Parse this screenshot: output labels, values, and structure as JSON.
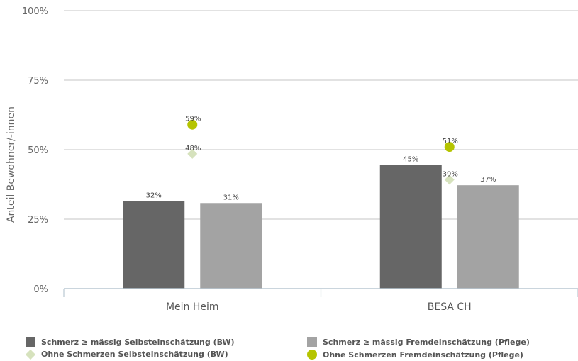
{
  "chart_data": {
    "type": "bar",
    "ylabel": "Anteil Bewohner/-innen",
    "ylim": [
      0,
      100
    ],
    "yticks": [
      0,
      25,
      50,
      75,
      100
    ],
    "ytick_labels": [
      "0%",
      "25%",
      "50%",
      "75%",
      "100%"
    ],
    "categories": [
      "Mein Heim",
      "BESA CH"
    ],
    "bar_series": [
      {
        "name": "Schmerz ≥ mässig Selbsteinschätzung (BW)",
        "color": "#666666",
        "values": [
          31.5,
          44.5
        ],
        "labels": [
          "32%",
          "45%"
        ]
      },
      {
        "name": "Schmerz ≥ mässig Fremdeinschätzung (Pflege)",
        "color": "#a3a3a3",
        "values": [
          30.8,
          37.2
        ],
        "labels": [
          "31%",
          "37%"
        ]
      }
    ],
    "marker_series": [
      {
        "name": "Ohne Schmerzen Selbsteinschätzung (BW)",
        "marker": "diamond",
        "color": "#d6e2bd",
        "values": [
          48.5,
          39.2
        ],
        "labels": [
          "48%",
          "39%"
        ]
      },
      {
        "name": "Ohne Schmerzen Fremdeinschätzung (Pflege)",
        "marker": "circle",
        "color": "#b5c400",
        "values": [
          59,
          51
        ],
        "labels": [
          "59%",
          "51%"
        ]
      }
    ],
    "grid": true,
    "legend_position": "bottom"
  }
}
